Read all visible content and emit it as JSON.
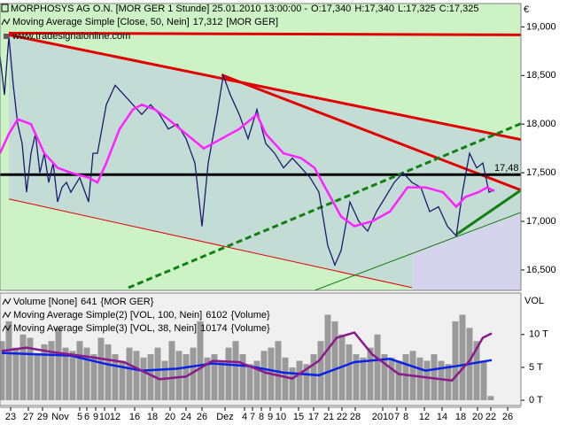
{
  "chart_data": [
    {
      "type": "line",
      "title": "MORPHOSYS AG O.N. [MOR GER  1 Stunde] 25.01.2010 13:00:00 -",
      "quote": {
        "open": "O:17,340",
        "high": "H:17,340",
        "low": "L:17,325",
        "close": "C:17,325"
      },
      "watermark": "www.tradesignalonline.com",
      "currency": "€",
      "xlim": [
        0,
        588
      ],
      "ylim": [
        16.29,
        19.24
      ],
      "yticks": [
        {
          "value": 16.5,
          "label": "16,500"
        },
        {
          "value": 17,
          "label": "17,000"
        },
        {
          "value": 17.5,
          "label": "17,500"
        },
        {
          "value": 18,
          "label": "18,000"
        },
        {
          "value": 18.5,
          "label": "18,500"
        },
        {
          "value": 19,
          "label": "19,000"
        }
      ],
      "series": [
        {
          "color": "#1a1a70",
          "x": [
            0,
            5,
            10,
            15,
            20,
            25,
            30,
            35,
            40,
            45,
            50,
            55,
            60,
            65,
            70,
            75,
            80,
            90,
            100,
            105,
            110,
            120,
            130,
            140,
            150,
            160,
            170,
            180,
            190,
            200,
            210,
            220,
            228,
            235,
            245,
            252,
            260,
            270,
            280,
            290,
            300,
            310,
            320,
            330,
            340,
            350,
            360,
            370,
            378,
            385,
            395,
            405,
            415,
            425,
            435,
            445,
            455,
            465,
            475,
            485,
            495,
            505,
            515,
            522,
            530,
            538,
            545,
            552,
            558
          ],
          "values": [
            18.7,
            18.3,
            18.9,
            18.4,
            18.0,
            17.8,
            17.3,
            17.7,
            17.9,
            17.5,
            17.7,
            17.4,
            17.6,
            17.2,
            17.35,
            17.4,
            17.3,
            17.45,
            17.2,
            17.7,
            17.7,
            18.2,
            18.4,
            18.3,
            18.2,
            18.1,
            18.2,
            18.1,
            17.95,
            18.0,
            17.85,
            17.6,
            16.95,
            17.6,
            18.1,
            18.5,
            18.3,
            18.1,
            17.85,
            18.15,
            17.8,
            17.7,
            17.55,
            17.65,
            17.55,
            17.45,
            17.3,
            16.75,
            16.55,
            16.7,
            17.2,
            17.0,
            16.9,
            17.1,
            17.25,
            17.4,
            17.5,
            17.4,
            17.35,
            17.1,
            17.15,
            16.95,
            16.85,
            17.3,
            17.7,
            17.55,
            17.6,
            17.3,
            17.325
          ]
        },
        {
          "name": "Moving Average Simple [Close, 50, Nein]",
          "color": "#ff20ff",
          "last_value": {
            "value": 17.312,
            "label": "17,312"
          },
          "source": "[MOR GER]",
          "x": [
            0,
            10,
            20,
            35,
            50,
            65,
            80,
            100,
            110,
            120,
            135,
            150,
            160,
            175,
            190,
            210,
            230,
            250,
            270,
            290,
            300,
            310,
            320,
            340,
            355,
            370,
            385,
            400,
            420,
            440,
            460,
            480,
            500,
            515,
            525,
            540,
            550,
            558
          ],
          "values": [
            17.7,
            17.9,
            18.05,
            18.0,
            17.7,
            17.55,
            17.5,
            17.45,
            17.4,
            17.6,
            17.95,
            18.15,
            18.2,
            18.15,
            18.05,
            17.9,
            17.75,
            17.85,
            17.95,
            18.1,
            17.9,
            17.8,
            17.7,
            17.65,
            17.55,
            17.3,
            17.05,
            16.95,
            17.0,
            17.1,
            17.35,
            17.35,
            17.3,
            17.15,
            17.25,
            17.3,
            17.35,
            17.312
          ]
        }
      ],
      "lines": [
        {
          "color": "#e00000",
          "width": 3,
          "dash": false,
          "x": [
            10,
            588
          ],
          "values": [
            18.936,
            18.918
          ]
        },
        {
          "color": "#e00000",
          "width": 3,
          "dash": false,
          "x": [
            10,
            588
          ],
          "values": [
            18.918,
            17.841
          ]
        },
        {
          "color": "#e00000",
          "width": 3,
          "dash": false,
          "x": [
            250,
            588
          ],
          "values": [
            18.507,
            17.321
          ]
        },
        {
          "color": "#e00000",
          "width": 1,
          "dash": false,
          "x": [
            10,
            465
          ],
          "values": [
            17.23,
            16.318
          ]
        },
        {
          "color": "#000000",
          "width": 3,
          "dash": false,
          "x": [
            0,
            588
          ],
          "values": [
            17.48,
            17.48
          ],
          "label": "17,48"
        },
        {
          "color": "#108010",
          "width": 3,
          "dash": true,
          "x": [
            145,
            588
          ],
          "values": [
            16.318,
            18.005
          ]
        },
        {
          "color": "#108010",
          "width": 3,
          "dash": false,
          "x": [
            515,
            588
          ],
          "values": [
            16.865,
            17.321
          ]
        },
        {
          "color": "#108010",
          "width": 1,
          "dash": false,
          "x": [
            355,
            588
          ],
          "values": [
            16.29,
            17.093
          ]
        }
      ]
    },
    {
      "type": "bar",
      "axis_title": "VOL",
      "xlim": [
        0,
        588
      ],
      "ylim": [
        -800,
        16300
      ],
      "yticks": [
        {
          "value": 0,
          "label": "0 T"
        },
        {
          "value": 5000,
          "label": "5 T"
        },
        {
          "value": 10000,
          "label": "10 T"
        }
      ],
      "xticks": [
        {
          "value": 12,
          "label": "23"
        },
        {
          "value": 32,
          "label": "27"
        },
        {
          "value": 48,
          "label": "29"
        },
        {
          "value": 68,
          "label": "Nov"
        },
        {
          "value": 90,
          "label": "5"
        },
        {
          "value": 98,
          "label": "6"
        },
        {
          "value": 108,
          "label": "9"
        },
        {
          "value": 118,
          "label": "10"
        },
        {
          "value": 130,
          "label": "12"
        },
        {
          "value": 152,
          "label": "16"
        },
        {
          "value": 172,
          "label": "18"
        },
        {
          "value": 192,
          "label": "20"
        },
        {
          "value": 210,
          "label": "24"
        },
        {
          "value": 228,
          "label": "26"
        },
        {
          "value": 254,
          "label": "Dez"
        },
        {
          "value": 276,
          "label": "4"
        },
        {
          "value": 285,
          "label": "7"
        },
        {
          "value": 295,
          "label": "8"
        },
        {
          "value": 305,
          "label": "9"
        },
        {
          "value": 317,
          "label": "10"
        },
        {
          "value": 337,
          "label": "15"
        },
        {
          "value": 354,
          "label": "17"
        },
        {
          "value": 371,
          "label": "21"
        },
        {
          "value": 386,
          "label": "22"
        },
        {
          "value": 401,
          "label": "28"
        },
        {
          "value": 432,
          "label": "2010"
        },
        {
          "value": 448,
          "label": "7"
        },
        {
          "value": 458,
          "label": "8"
        },
        {
          "value": 479,
          "label": "12"
        },
        {
          "value": 499,
          "label": "14"
        },
        {
          "value": 520,
          "label": "18"
        },
        {
          "value": 539,
          "label": "20"
        },
        {
          "value": 554,
          "label": "22"
        },
        {
          "value": 573,
          "label": "26"
        }
      ],
      "series": [
        {
          "name": "Volume [None]",
          "color": "#9a9a9a",
          "last_value": 641,
          "source": "{MOR GER}",
          "x": [
            2,
            10,
            18,
            26,
            34,
            42,
            50,
            58,
            66,
            74,
            82,
            90,
            98,
            106,
            114,
            122,
            130,
            138,
            146,
            154,
            162,
            170,
            178,
            186,
            194,
            202,
            210,
            218,
            226,
            234,
            242,
            250,
            258,
            266,
            274,
            282,
            290,
            298,
            306,
            314,
            322,
            330,
            338,
            346,
            354,
            362,
            370,
            378,
            386,
            394,
            402,
            410,
            418,
            426,
            434,
            442,
            450,
            458,
            466,
            474,
            482,
            490,
            498,
            506,
            514,
            522,
            530,
            538,
            546,
            554
          ],
          "values": [
            9000,
            12000,
            8000,
            10000,
            9500,
            7000,
            8500,
            9000,
            11000,
            8000,
            7500,
            9000,
            8000,
            7000,
            9500,
            8500,
            7000,
            6000,
            8000,
            7500,
            6500,
            7000,
            8000,
            6000,
            9000,
            7500,
            7000,
            8000,
            12000,
            6500,
            7000,
            6000,
            8000,
            9000,
            7000,
            5500,
            6000,
            7500,
            8000,
            9000,
            6500,
            5000,
            6000,
            5500,
            7000,
            9000,
            13000,
            12000,
            10000,
            8500,
            7000,
            6500,
            8000,
            10000,
            7000,
            6500,
            6000,
            7000,
            7500,
            6500,
            6000,
            7000,
            6000,
            5500,
            12000,
            13000,
            11000,
            9000,
            6000,
            641
          ]
        },
        {
          "name": "Moving Average Simple(2) [VOL, 100, Nein]",
          "type": "line",
          "color": "#0a22e6",
          "last_value": 6102,
          "source": "{Volume}",
          "x": [
            2,
            40,
            80,
            120,
            160,
            200,
            240,
            280,
            320,
            360,
            400,
            440,
            480,
            520,
            555
          ],
          "values": [
            7200,
            7000,
            6800,
            5500,
            4500,
            4800,
            5600,
            5200,
            4200,
            3800,
            5800,
            6300,
            4500,
            5300,
            6102
          ]
        },
        {
          "name": "Moving Average Simple(3) [VOL, 38, Nein]",
          "type": "line",
          "color": "#8a1a8a",
          "last_value": 10174,
          "source": "{Volume}",
          "x": [
            2,
            30,
            60,
            100,
            140,
            180,
            210,
            240,
            270,
            300,
            330,
            360,
            380,
            400,
            420,
            450,
            480,
            510,
            530,
            545,
            555
          ],
          "values": [
            7500,
            8000,
            7300,
            6600,
            5800,
            3200,
            3600,
            6000,
            5800,
            4200,
            3300,
            6000,
            9500,
            10300,
            7000,
            4000,
            3500,
            3000,
            6000,
            9500,
            10174
          ]
        }
      ]
    }
  ]
}
